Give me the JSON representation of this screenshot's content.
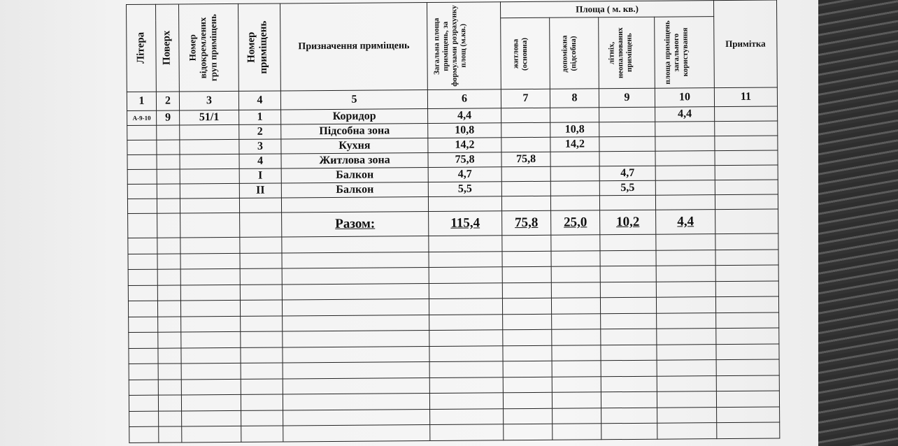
{
  "headers": {
    "c1": "Літера",
    "c2": "Поверх",
    "c3": "Номер відокремлених груп приміщень",
    "c4": "Номер приміщень",
    "c5": "Призначення приміщень",
    "c6": "Загальна площа приміщень, за формулами розрахунку площ (м.кв.)",
    "group": "Площа ( м. кв.)",
    "c7": "житлова (основна)",
    "c8": "допоміжна (підсобна)",
    "c9": "літніх, неопалюваних приміщень",
    "c10": "площа приміщень загального користування",
    "c11": "Примітка"
  },
  "col_numbers": [
    "1",
    "2",
    "3",
    "4",
    "5",
    "6",
    "7",
    "8",
    "9",
    "10",
    "11"
  ],
  "rows": [
    [
      "А-9-10",
      "9",
      "51/1",
      "1",
      "Коридор",
      "4,4",
      "",
      "",
      "",
      "4,4",
      ""
    ],
    [
      "",
      "",
      "",
      "2",
      "Підсобна зона",
      "10,8",
      "",
      "10,8",
      "",
      "",
      ""
    ],
    [
      "",
      "",
      "",
      "3",
      "Кухня",
      "14,2",
      "",
      "14,2",
      "",
      "",
      ""
    ],
    [
      "",
      "",
      "",
      "4",
      "Житлова зона",
      "75,8",
      "75,8",
      "",
      "",
      "",
      ""
    ],
    [
      "",
      "",
      "",
      "I",
      "Балкон",
      "4,7",
      "",
      "",
      "4,7",
      "",
      ""
    ],
    [
      "",
      "",
      "",
      "II",
      "Балкон",
      "5,5",
      "",
      "",
      "5,5",
      "",
      ""
    ]
  ],
  "total": {
    "label": "Разом:",
    "c6": "115,4",
    "c7": "75,8",
    "c8": "25,0",
    "c9": "10,2",
    "c10": "4,4"
  }
}
